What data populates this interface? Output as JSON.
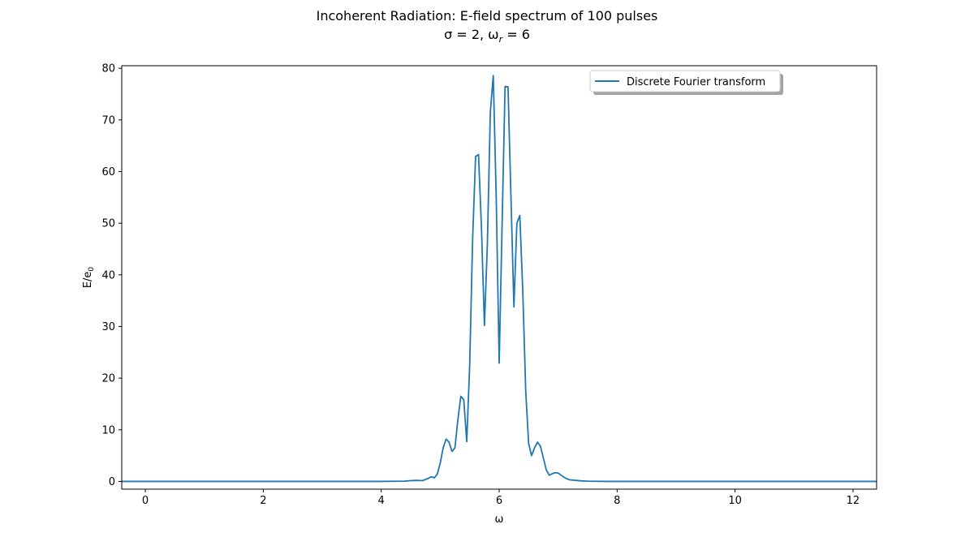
{
  "chart_data": {
    "type": "line",
    "title": "Incoherent Radiation: E-field spectrum of 100 pulses",
    "subtitle": {
      "sigma_text": "σ = 2, ω",
      "subscript": "r",
      "rest": " = 6"
    },
    "xlabel": "ω",
    "ylabel": {
      "main": "E/e",
      "subscript": "0"
    },
    "xlim": [
      -0.4,
      12.4
    ],
    "ylim": [
      -1.5,
      80.5
    ],
    "xticks": [
      0,
      2,
      4,
      6,
      8,
      10,
      12
    ],
    "yticks": [
      0,
      10,
      20,
      30,
      40,
      50,
      60,
      70,
      80
    ],
    "grid": false,
    "legend": {
      "placement": "top-right",
      "entries": [
        "Discrete Fourier transform"
      ]
    },
    "series": [
      {
        "name": "Discrete Fourier transform",
        "color": "#1f77b4",
        "x": [
          -0.4,
          0,
          1,
          2,
          3,
          4,
          4.4,
          4.5,
          4.6,
          4.7,
          4.8,
          4.85,
          4.9,
          4.95,
          5.0,
          5.05,
          5.1,
          5.15,
          5.2,
          5.25,
          5.3,
          5.35,
          5.4,
          5.45,
          5.5,
          5.55,
          5.6,
          5.65,
          5.7,
          5.75,
          5.8,
          5.85,
          5.9,
          5.95,
          6.0,
          6.05,
          6.1,
          6.15,
          6.2,
          6.25,
          6.3,
          6.35,
          6.4,
          6.45,
          6.5,
          6.55,
          6.6,
          6.65,
          6.7,
          6.75,
          6.8,
          6.85,
          6.9,
          6.95,
          7.0,
          7.05,
          7.1,
          7.15,
          7.2,
          7.3,
          7.4,
          7.5,
          7.6,
          7.8,
          8.0,
          9,
          10,
          11,
          12,
          12.4
        ],
        "y": [
          0,
          0,
          0,
          0,
          0,
          0,
          0.05,
          0.15,
          0.2,
          0.15,
          0.6,
          0.9,
          0.7,
          1.4,
          3.5,
          6.5,
          8.2,
          7.6,
          5.8,
          6.5,
          12.0,
          16.5,
          15.8,
          7.7,
          22.5,
          47.0,
          62.9,
          63.3,
          49.0,
          30.2,
          46.0,
          71.5,
          78.6,
          55.0,
          22.9,
          50.0,
          76.5,
          76.4,
          55.0,
          33.8,
          50.0,
          51.5,
          37.0,
          17.5,
          7.3,
          5.0,
          6.5,
          7.6,
          6.8,
          4.5,
          2.2,
          1.2,
          1.5,
          1.7,
          1.6,
          1.2,
          0.8,
          0.5,
          0.3,
          0.2,
          0.1,
          0.05,
          0.03,
          0,
          0,
          0,
          0,
          0,
          0,
          0
        ]
      }
    ]
  }
}
